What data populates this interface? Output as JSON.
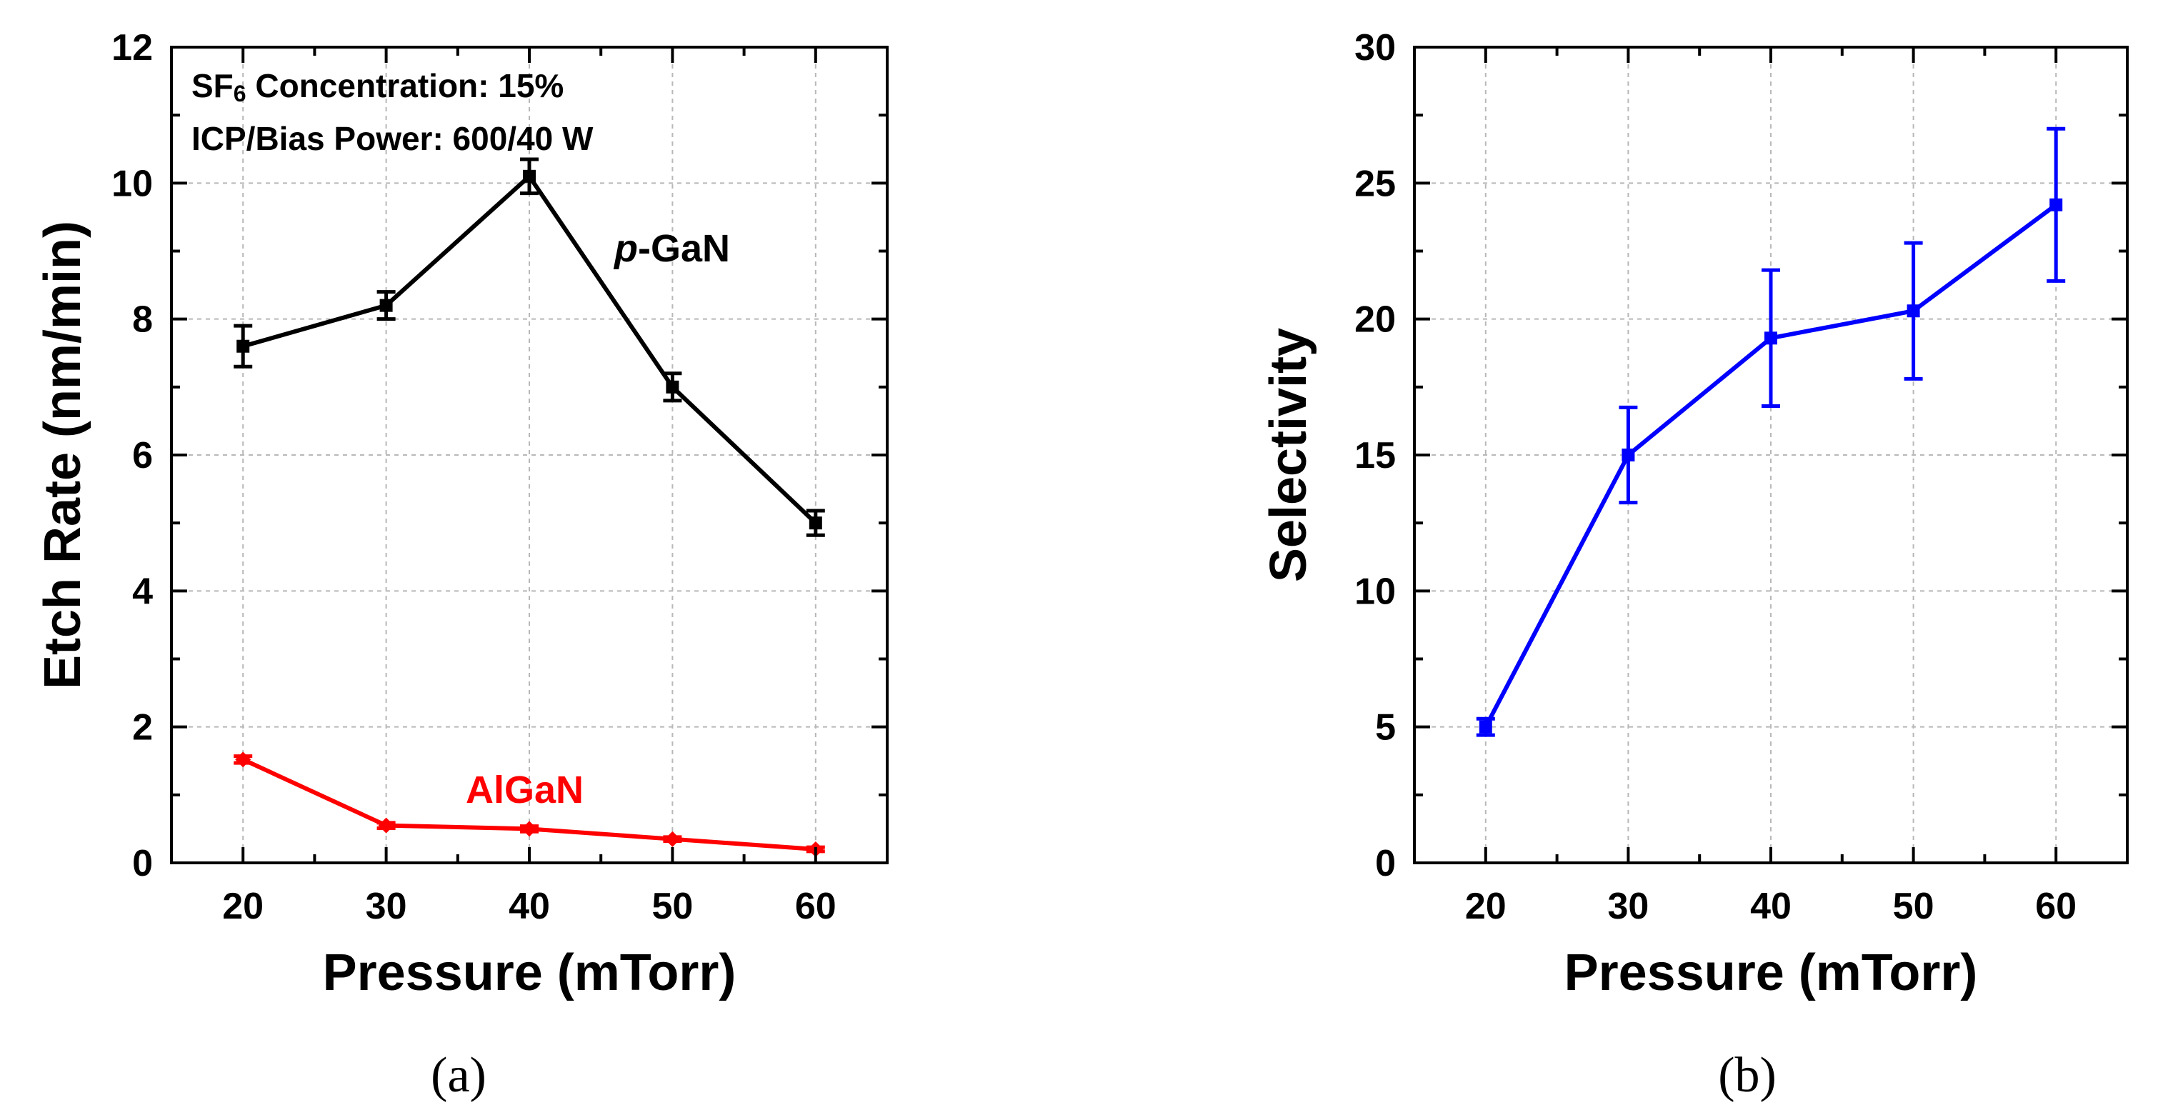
{
  "chart_data": [
    {
      "type": "line",
      "panel_label": "(a)",
      "xlabel": "Pressure (mTorr)",
      "ylabel": "Etch Rate (nm/min)",
      "xlim": [
        15,
        65
      ],
      "ylim": [
        0,
        12
      ],
      "x_ticks": [
        20,
        30,
        40,
        50,
        60
      ],
      "y_ticks": [
        0,
        2,
        4,
        6,
        8,
        10,
        12
      ],
      "grid": true,
      "annotations": [
        {
          "text_main": "SF",
          "text_sub": "6",
          "text_rest": " Concentration: 15%"
        },
        {
          "text": "ICP/Bias Power: 600/40 W"
        }
      ],
      "series": [
        {
          "name_italic": "p",
          "name_rest": "-GaN",
          "color": "#000000",
          "marker": "square",
          "x": [
            20,
            30,
            40,
            50,
            60
          ],
          "y": [
            7.6,
            8.2,
            10.1,
            7.0,
            5.0
          ],
          "err": [
            0.3,
            0.2,
            0.25,
            0.2,
            0.18
          ]
        },
        {
          "name": "AlGaN",
          "color": "#ff0000",
          "marker": "diamond",
          "x": [
            20,
            30,
            40,
            50,
            60
          ],
          "y": [
            1.52,
            0.55,
            0.5,
            0.35,
            0.2
          ],
          "err": [
            0.05,
            0.04,
            0.04,
            0.03,
            0.03
          ]
        }
      ]
    },
    {
      "type": "line",
      "panel_label": "(b)",
      "xlabel": "Pressure (mTorr)",
      "ylabel": "Selectivity",
      "xlim": [
        15,
        65
      ],
      "ylim": [
        0,
        30
      ],
      "x_ticks": [
        20,
        30,
        40,
        50,
        60
      ],
      "y_ticks": [
        0,
        5,
        10,
        15,
        20,
        25,
        30
      ],
      "grid": true,
      "series": [
        {
          "name": "Selectivity",
          "color": "#0000ff",
          "marker": "square",
          "x": [
            20,
            30,
            40,
            50,
            60
          ],
          "y": [
            5.0,
            15.0,
            19.3,
            20.3,
            24.2
          ],
          "err": [
            0.3,
            1.75,
            2.5,
            2.5,
            2.8
          ]
        }
      ]
    }
  ]
}
